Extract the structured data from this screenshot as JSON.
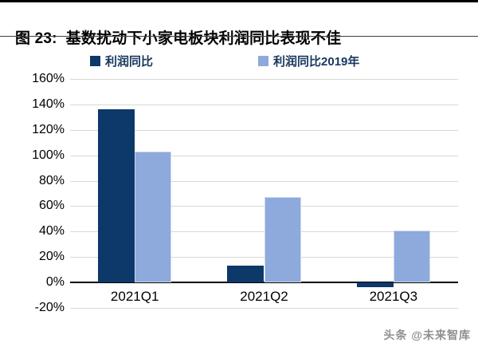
{
  "header": {
    "title": "图 23:  基数扰动下小家电板块利润同比表现不佳"
  },
  "footer": {
    "watermark": "头条 @未来智库"
  },
  "colors": {
    "series_dark": "#0d386a",
    "series_light": "#8ea9db",
    "legend_text": "#17365d",
    "gridline": "#d8d8d8",
    "zero_axis": "#000000",
    "watermark_gray": "#8f8f8f"
  },
  "chart_data": {
    "type": "bar",
    "title": "基数扰动下小家电板块利润同比表现不佳",
    "categories": [
      "2021Q1",
      "2021Q2",
      "2021Q3"
    ],
    "series": [
      {
        "name": "利润同比",
        "color": "#0d386a",
        "values": [
          136,
          13,
          -4
        ]
      },
      {
        "name": "利润同比2019年",
        "color": "#8ea9db",
        "values": [
          103,
          67,
          41
        ]
      }
    ],
    "xlabel": "",
    "ylabel": "",
    "ylim": [
      -20,
      160
    ],
    "yticks": [
      160,
      140,
      120,
      100,
      80,
      60,
      40,
      20,
      0,
      -20
    ],
    "ytick_suffix": "%",
    "grid": true,
    "legend_position": "top",
    "bar_width_pct": 9.45
  }
}
